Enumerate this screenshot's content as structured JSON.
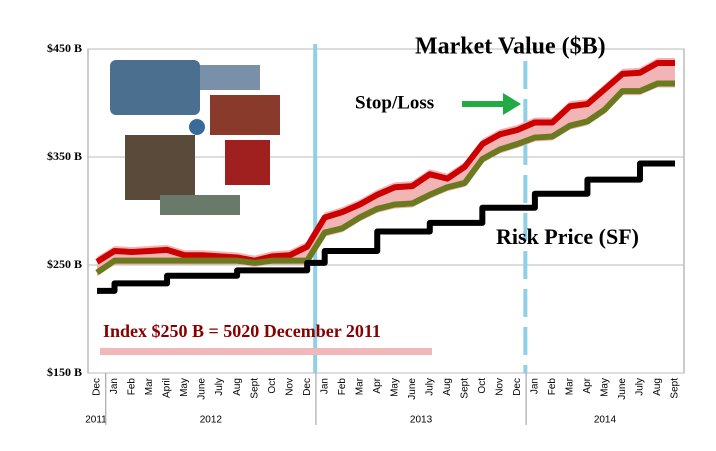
{
  "chart_data": {
    "type": "line",
    "title": "Market Value ($B)",
    "annotations": [
      "Stop/Loss",
      "Index $250 B = 5020 December 2011"
    ],
    "categories": [
      "Dec",
      "Jan",
      "Feb",
      "Mar",
      "April",
      "May",
      "June",
      "July",
      "Aug",
      "Sept",
      "Oct",
      "Nov",
      "Dec",
      "Jan",
      "Feb",
      "Mar",
      "Apr",
      "May",
      "June",
      "July",
      "Aug",
      "Sept",
      "Oct",
      "Nov",
      "Dec",
      "Jan",
      "Feb",
      "Mar",
      "Apr",
      "May",
      "June",
      "July",
      "Aug",
      "Sept"
    ],
    "year_labels": [
      "2011",
      "2012",
      "2013",
      "2014"
    ],
    "ylim": [
      150,
      450
    ],
    "yticks": [
      {
        "value": 150,
        "label": "$150 B"
      },
      {
        "value": 250,
        "label": "$250 B"
      },
      {
        "value": 350,
        "label": "$350 B"
      },
      {
        "value": 450,
        "label": "$450 B"
      }
    ],
    "grid": true,
    "series": [
      {
        "name": "Market Value ($B)",
        "color": "#cc0000",
        "values": [
          253,
          263,
          262,
          263,
          264,
          259,
          259,
          258,
          257,
          254,
          258,
          259,
          267,
          294,
          299,
          306,
          315,
          322,
          323,
          334,
          330,
          341,
          362,
          371,
          375,
          382,
          382,
          397,
          399,
          413,
          427,
          428,
          437,
          437
        ]
      },
      {
        "color": "#6b7a1f",
        "values": [
          243,
          254,
          254,
          254,
          254,
          254,
          254,
          254,
          254,
          252,
          254,
          254,
          254,
          280,
          284,
          294,
          302,
          306,
          307,
          315,
          322,
          326,
          348,
          357,
          362,
          368,
          369,
          379,
          383,
          394,
          411,
          411,
          418,
          418
        ]
      },
      {
        "name": "Risk Price (SF)",
        "color": "#000000",
        "values": [
          226,
          233,
          233,
          233,
          240,
          240,
          240,
          240,
          245,
          245,
          245,
          245,
          252,
          263,
          263,
          263,
          281,
          281,
          281,
          289,
          289,
          289,
          303,
          303,
          303,
          316,
          316,
          316,
          329,
          329,
          329,
          344,
          344,
          344
        ]
      }
    ]
  }
}
